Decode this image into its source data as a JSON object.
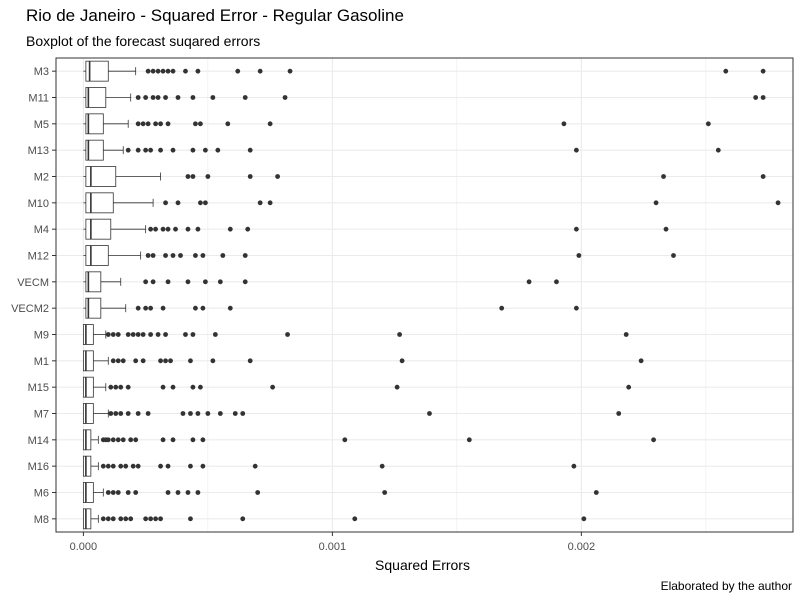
{
  "chart_data": {
    "type": "boxplot",
    "title": "Rio de Janeiro - Squared Error - Regular Gasoline",
    "subtitle": "Boxplot of the forecast suqared errors",
    "caption": "Elaborated by the author",
    "xlabel": "Squared Errors",
    "ylabel": "",
    "xlim": [
      -0.00011,
      0.00285
    ],
    "x_ticks": [
      0.0,
      0.001,
      0.002
    ],
    "x_tick_labels": [
      "0.000",
      "0.001",
      "0.002"
    ],
    "grid": true,
    "colors": {
      "grid": "#ebebeb",
      "axis_text": "#4d4d4d",
      "box": "#333333",
      "panel_border": "#333333"
    },
    "series": [
      {
        "name": "M3",
        "min": 0.0,
        "q1": 1e-05,
        "median": 2.5e-05,
        "q3": 0.0001,
        "whisker_high": 0.00021,
        "outliers": [
          0.00026,
          0.00028,
          0.0003,
          0.00032,
          0.00034,
          0.00036,
          0.00041,
          0.00046,
          0.00062,
          0.00071,
          0.00083,
          0.00258,
          0.00273
        ]
      },
      {
        "name": "M11",
        "min": 0.0,
        "q1": 1e-05,
        "median": 2e-05,
        "q3": 9e-05,
        "whisker_high": 0.00019,
        "outliers": [
          0.00022,
          0.00025,
          0.00028,
          0.0003,
          0.00033,
          0.00038,
          0.00044,
          0.00052,
          0.00065,
          0.00081,
          0.0027,
          0.00273
        ]
      },
      {
        "name": "M5",
        "min": 0.0,
        "q1": 1e-05,
        "median": 2e-05,
        "q3": 8e-05,
        "whisker_high": 0.00018,
        "outliers": [
          0.00022,
          0.00024,
          0.00026,
          0.00029,
          0.00031,
          0.00034,
          0.00045,
          0.00047,
          0.00058,
          0.00075,
          0.00193,
          0.00251
        ]
      },
      {
        "name": "M13",
        "min": 0.0,
        "q1": 1e-05,
        "median": 2e-05,
        "q3": 8e-05,
        "whisker_high": 0.00016,
        "outliers": [
          0.00018,
          0.00022,
          0.00025,
          0.00027,
          0.00031,
          0.00036,
          0.00044,
          0.00049,
          0.00054,
          0.00067,
          0.00198,
          0.00255
        ]
      },
      {
        "name": "M2",
        "min": 0.0,
        "q1": 1e-05,
        "median": 3e-05,
        "q3": 0.00013,
        "whisker_high": 0.00031,
        "outliers": [
          0.00042,
          0.00044,
          0.0005,
          0.00067,
          0.00078,
          0.00233,
          0.00273
        ]
      },
      {
        "name": "M10",
        "min": 0.0,
        "q1": 1e-05,
        "median": 3e-05,
        "q3": 0.00012,
        "whisker_high": 0.00028,
        "outliers": [
          0.00033,
          0.00038,
          0.00047,
          0.00049,
          0.00071,
          0.00075,
          0.0023,
          0.00279
        ]
      },
      {
        "name": "M4",
        "min": 0.0,
        "q1": 1e-05,
        "median": 3e-05,
        "q3": 0.00011,
        "whisker_high": 0.00025,
        "outliers": [
          0.00027,
          0.00029,
          0.00032,
          0.00034,
          0.00037,
          0.00042,
          0.00046,
          0.00059,
          0.00066,
          0.00198,
          0.00234
        ]
      },
      {
        "name": "M12",
        "min": 0.0,
        "q1": 1e-05,
        "median": 3e-05,
        "q3": 0.0001,
        "whisker_high": 0.00023,
        "outliers": [
          0.00026,
          0.00028,
          0.00033,
          0.00036,
          0.00039,
          0.00045,
          0.00048,
          0.00056,
          0.00065,
          0.00199,
          0.00237
        ]
      },
      {
        "name": "VECM",
        "min": 0.0,
        "q1": 1e-05,
        "median": 2e-05,
        "q3": 7e-05,
        "whisker_high": 0.00015,
        "outliers": [
          0.00025,
          0.00028,
          0.00034,
          0.00042,
          0.00049,
          0.00055,
          0.00065,
          0.00179,
          0.0019
        ]
      },
      {
        "name": "VECM2",
        "min": 0.0,
        "q1": 1e-05,
        "median": 2e-05,
        "q3": 7e-05,
        "whisker_high": 0.00017,
        "outliers": [
          0.00022,
          0.00025,
          0.00027,
          0.00032,
          0.00045,
          0.00048,
          0.00059,
          0.00168,
          0.00198
        ]
      },
      {
        "name": "M9",
        "min": 0.0,
        "q1": 0.0,
        "median": 1e-05,
        "q3": 4e-05,
        "whisker_high": 9e-05,
        "outliers": [
          0.0001,
          0.00012,
          0.00014,
          0.00018,
          0.0002,
          0.00022,
          0.00024,
          0.00027,
          0.0003,
          0.00033,
          0.00041,
          0.00044,
          0.00053,
          0.00082,
          0.00127,
          0.00218
        ]
      },
      {
        "name": "M1",
        "min": 0.0,
        "q1": 0.0,
        "median": 1e-05,
        "q3": 4e-05,
        "whisker_high": 0.0001,
        "outliers": [
          0.00012,
          0.00014,
          0.00016,
          0.00021,
          0.00024,
          0.00031,
          0.00033,
          0.00035,
          0.00043,
          0.00052,
          0.00067,
          0.00128,
          0.00224
        ]
      },
      {
        "name": "M15",
        "min": 0.0,
        "q1": 0.0,
        "median": 1e-05,
        "q3": 4e-05,
        "whisker_high": 9e-05,
        "outliers": [
          0.00011,
          0.00013,
          0.00015,
          0.00018,
          0.00032,
          0.00036,
          0.00044,
          0.00047,
          0.00076,
          0.00126,
          0.00219
        ]
      },
      {
        "name": "M7",
        "min": 0.0,
        "q1": 0.0,
        "median": 1e-05,
        "q3": 4e-05,
        "whisker_high": 0.0001,
        "outliers": [
          0.00011,
          0.00013,
          0.00015,
          0.00018,
          0.00022,
          0.00026,
          0.0004,
          0.00043,
          0.00046,
          0.0005,
          0.00055,
          0.00061,
          0.00064,
          0.00139,
          0.00215
        ]
      },
      {
        "name": "M14",
        "min": 0.0,
        "q1": 0.0,
        "median": 1e-05,
        "q3": 3e-05,
        "whisker_high": 6e-05,
        "outliers": [
          8e-05,
          9e-05,
          0.0001,
          0.00012,
          0.00014,
          0.00016,
          0.00019,
          0.00021,
          0.00032,
          0.00036,
          0.00044,
          0.00048,
          0.00105,
          0.00155,
          0.00229
        ]
      },
      {
        "name": "M16",
        "min": 0.0,
        "q1": 0.0,
        "median": 1e-05,
        "q3": 3e-05,
        "whisker_high": 6e-05,
        "outliers": [
          8e-05,
          0.0001,
          0.00012,
          0.00015,
          0.00017,
          0.0002,
          0.00022,
          0.00031,
          0.00034,
          0.00043,
          0.00048,
          0.00069,
          0.0012,
          0.00197
        ]
      },
      {
        "name": "M6",
        "min": 0.0,
        "q1": 0.0,
        "median": 1e-05,
        "q3": 4e-05,
        "whisker_high": 8e-05,
        "outliers": [
          0.0001,
          0.00012,
          0.00014,
          0.00018,
          0.00021,
          0.00034,
          0.00038,
          0.00042,
          0.00046,
          0.0007,
          0.00121,
          0.00206
        ]
      },
      {
        "name": "M8",
        "min": 0.0,
        "q1": 0.0,
        "median": 1e-05,
        "q3": 3e-05,
        "whisker_high": 6e-05,
        "outliers": [
          8e-05,
          0.0001,
          0.00012,
          0.00015,
          0.00017,
          0.00019,
          0.00025,
          0.00027,
          0.00029,
          0.00031,
          0.00043,
          0.00064,
          0.00109,
          0.00201
        ]
      }
    ]
  }
}
